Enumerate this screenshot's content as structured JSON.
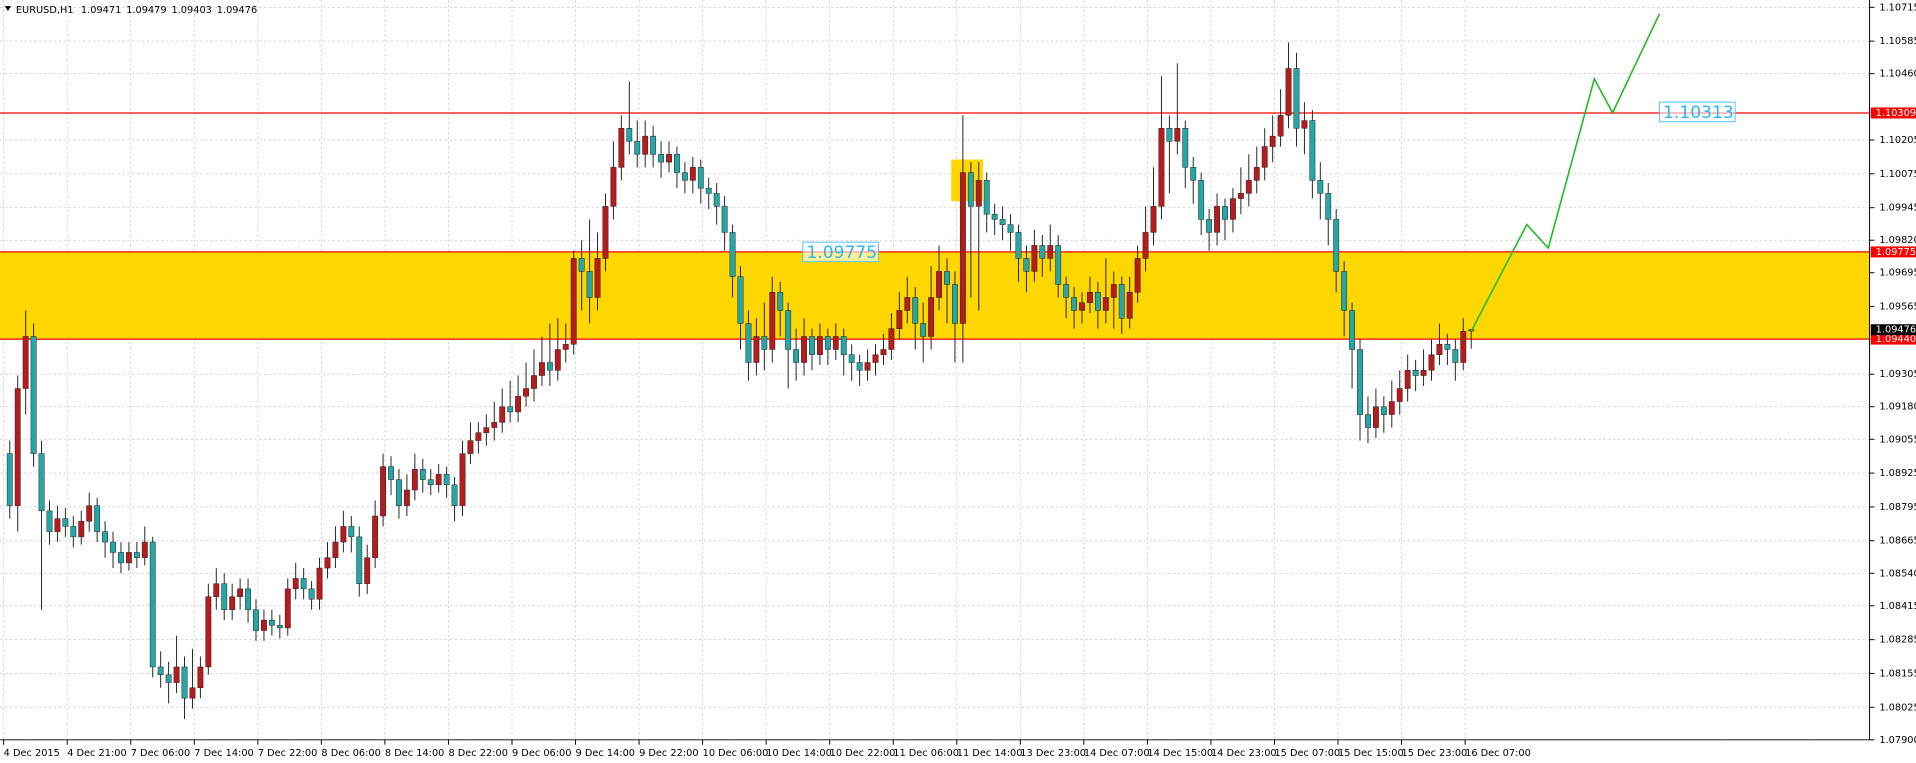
{
  "chart_data": {
    "type": "candlestick",
    "symbol": "EURUSD,H1",
    "up_color": "#b71c1c",
    "down_color": "#26a6a6",
    "grid": true,
    "ylim": [
      1.079,
      1.10715
    ],
    "yticks": [
      1.10715,
      1.10585,
      {
        "value": 1.1046,
        "label": "1.10460"
      },
      1.10205,
      1.10075,
      1.09945,
      {
        "value": 1.0982,
        "label": "1.09820"
      },
      1.09695,
      1.09565,
      1.09305,
      {
        "value": 1.0918,
        "label": "1.09180"
      },
      1.09055,
      1.08925,
      1.08795,
      1.08665,
      {
        "value": 1.0854,
        "label": "1.08540"
      },
      1.08415,
      1.08285,
      1.08155,
      1.08025,
      {
        "value": 1.079,
        "label": "1.07900"
      }
    ],
    "levels": [
      1.10309,
      1.09775,
      {
        "value": 1.0944,
        "label": "1.09440"
      }
    ],
    "level_color": "#ff0000",
    "zone_color": "#ffd700",
    "annotations": [
      1.10313
    ],
    "highlight": {
      "x": [
        119,
        123
      ],
      "y": [
        1.0997,
        1.1013
      ],
      "color": "#ffd700"
    },
    "projection": {
      "x": [
        184,
        191,
        193.7,
        199.5,
        201.8,
        207.7
      ],
      "y": [
        1.0947,
        1.0988,
        1.0979,
        1.1044,
        1.1031,
        1.1069
      ],
      "color": "#22bb22"
    },
    "categories": [
      "4 Dec 2015",
      null,
      null,
      null,
      null,
      null,
      null,
      null,
      "4 Dec 21:00",
      null,
      null,
      null,
      null,
      null,
      null,
      null,
      "7 Dec 06:00",
      null,
      null,
      null,
      null,
      null,
      null,
      null,
      "7 Dec 14:00",
      null,
      null,
      null,
      null,
      null,
      null,
      null,
      "7 Dec 22:00",
      null,
      null,
      null,
      null,
      null,
      null,
      null,
      "8 Dec 06:00",
      null,
      null,
      null,
      null,
      null,
      null,
      null,
      "8 Dec 14:00",
      null,
      null,
      null,
      null,
      null,
      null,
      null,
      "8 Dec 22:00",
      null,
      null,
      null,
      null,
      null,
      null,
      null,
      "9 Dec 06:00",
      null,
      null,
      null,
      null,
      null,
      null,
      null,
      "9 Dec 14:00",
      null,
      null,
      null,
      null,
      null,
      null,
      null,
      "9 Dec 22:00",
      null,
      null,
      null,
      null,
      null,
      null,
      null,
      "10 Dec 06:00",
      null,
      null,
      null,
      null,
      null,
      null,
      null,
      "10 Dec 14:00",
      null,
      null,
      null,
      null,
      null,
      null,
      null,
      "10 Dec 22:00",
      null,
      null,
      null,
      null,
      null,
      null,
      null,
      "11 Dec 06:00",
      null,
      null,
      null,
      null,
      null,
      null,
      null,
      "11 Dec 14:00",
      null,
      null,
      null,
      null,
      null,
      null,
      null,
      "13 Dec 23:00",
      null,
      null,
      null,
      null,
      null,
      null,
      null,
      "14 Dec 07:00",
      null,
      null,
      null,
      null,
      null,
      null,
      null,
      "14 Dec 15:00",
      null,
      null,
      null,
      null,
      null,
      null,
      null,
      "14 Dec 23:00",
      null,
      null,
      null,
      null,
      null,
      null,
      null,
      "15 Dec 07:00",
      null,
      null,
      null,
      null,
      null,
      null,
      null,
      "15 Dec 15:00",
      null,
      null,
      null,
      null,
      null,
      null,
      null,
      "15 Dec 23:00",
      null,
      null,
      null,
      null,
      null,
      null,
      null,
      "16 Dec 07:00"
    ],
    "candles": [
      [
        1.09,
        1.0905,
        1.0875,
        1.088
      ],
      [
        1.088,
        1.093,
        1.087,
        1.0925
      ],
      [
        1.0925,
        1.0955,
        1.0915,
        1.0945
      ],
      [
        1.0945,
        1.095,
        1.0895,
        1.09
      ],
      [
        1.09,
        1.0905,
        1.084,
        1.0878
      ],
      [
        1.0878,
        1.0882,
        1.0865,
        1.087
      ],
      [
        1.087,
        1.088,
        1.0866,
        1.0875
      ],
      [
        1.0875,
        1.0879,
        1.0868,
        1.0872
      ],
      [
        1.0872,
        1.0876,
        1.0864,
        1.0868
      ],
      [
        1.0868,
        1.0878,
        1.0865,
        1.0874
      ],
      [
        1.0874,
        1.0885,
        1.087,
        1.088
      ],
      [
        1.088,
        1.0883,
        1.0866,
        1.087
      ],
      [
        1.087,
        1.0874,
        1.086,
        1.0866
      ],
      [
        1.0866,
        1.087,
        1.0856,
        1.0862
      ],
      [
        1.0862,
        1.0866,
        1.0854,
        1.0858
      ],
      [
        1.0858,
        1.0866,
        1.0855,
        1.0862
      ],
      [
        1.0862,
        1.0866,
        1.0856,
        1.086
      ],
      [
        1.086,
        1.0872,
        1.0857,
        1.0866
      ],
      [
        1.0866,
        1.0868,
        1.0814,
        1.0818
      ],
      [
        1.0818,
        1.0824,
        1.081,
        1.0815
      ],
      [
        1.0815,
        1.082,
        1.0804,
        1.0812
      ],
      [
        1.0812,
        1.083,
        1.0808,
        1.0818
      ],
      [
        1.0818,
        1.0822,
        1.0798,
        1.0806
      ],
      [
        1.0806,
        1.0825,
        1.0802,
        1.081
      ],
      [
        1.081,
        1.0822,
        1.0806,
        1.0818
      ],
      [
        1.0818,
        1.085,
        1.0815,
        1.0845
      ],
      [
        1.0845,
        1.0856,
        1.084,
        1.085
      ],
      [
        1.085,
        1.0854,
        1.0836,
        1.084
      ],
      [
        1.084,
        1.085,
        1.0836,
        1.0845
      ],
      [
        1.0845,
        1.0852,
        1.084,
        1.0848
      ],
      [
        1.0848,
        1.0852,
        1.0835,
        1.084
      ],
      [
        1.084,
        1.0844,
        1.0828,
        1.0832
      ],
      [
        1.0832,
        1.084,
        1.0828,
        1.0836
      ],
      [
        1.0836,
        1.084,
        1.083,
        1.0834
      ],
      [
        1.0834,
        1.0838,
        1.0829,
        1.0833
      ],
      [
        1.0833,
        1.0852,
        1.083,
        1.0848
      ],
      [
        1.0848,
        1.0858,
        1.0844,
        1.0852
      ],
      [
        1.0852,
        1.0856,
        1.0844,
        1.0848
      ],
      [
        1.0848,
        1.0851,
        1.084,
        1.0844
      ],
      [
        1.0844,
        1.086,
        1.084,
        1.0856
      ],
      [
        1.0856,
        1.0866,
        1.0852,
        1.086
      ],
      [
        1.086,
        1.0872,
        1.0856,
        1.0866
      ],
      [
        1.0866,
        1.0878,
        1.0862,
        1.0872
      ],
      [
        1.0872,
        1.0876,
        1.0862,
        1.0868
      ],
      [
        1.0868,
        1.0872,
        1.0845,
        1.085
      ],
      [
        1.085,
        1.0865,
        1.0846,
        1.086
      ],
      [
        1.086,
        1.0882,
        1.0856,
        1.0876
      ],
      [
        1.0876,
        1.09,
        1.0872,
        1.0895
      ],
      [
        1.0895,
        1.0899,
        1.0884,
        1.089
      ],
      [
        1.089,
        1.0894,
        1.0875,
        1.088
      ],
      [
        1.088,
        1.0892,
        1.0876,
        1.0886
      ],
      [
        1.0886,
        1.09,
        1.0882,
        1.0894
      ],
      [
        1.0894,
        1.0898,
        1.0885,
        1.089
      ],
      [
        1.089,
        1.0894,
        1.0884,
        1.0888
      ],
      [
        1.0888,
        1.0896,
        1.0885,
        1.0892
      ],
      [
        1.0892,
        1.0895,
        1.0883,
        1.0888
      ],
      [
        1.0888,
        1.0891,
        1.0874,
        1.088
      ],
      [
        1.088,
        1.0905,
        1.0876,
        1.09
      ],
      [
        1.09,
        1.0912,
        1.0896,
        1.0905
      ],
      [
        1.0905,
        1.0912,
        1.09,
        1.0908
      ],
      [
        1.0908,
        1.0915,
        1.0903,
        1.091
      ],
      [
        1.091,
        1.092,
        1.0905,
        1.0912
      ],
      [
        1.0912,
        1.0925,
        1.0908,
        1.0918
      ],
      [
        1.0918,
        1.0928,
        1.0912,
        1.0916
      ],
      [
        1.0916,
        1.093,
        1.0912,
        1.0922
      ],
      [
        1.0922,
        1.0935,
        1.0918,
        1.0925
      ],
      [
        1.0925,
        1.094,
        1.092,
        1.093
      ],
      [
        1.093,
        1.0945,
        1.0926,
        1.0935
      ],
      [
        1.0935,
        1.095,
        1.0926,
        1.0932
      ],
      [
        1.0932,
        1.0952,
        1.0928,
        1.094
      ],
      [
        1.094,
        1.095,
        1.0935,
        1.0942
      ],
      [
        1.0942,
        1.0978,
        1.0938,
        1.0975
      ],
      [
        1.0975,
        1.0982,
        1.0955,
        1.097
      ],
      [
        1.097,
        1.099,
        1.095,
        1.096
      ],
      [
        1.096,
        1.0985,
        1.0955,
        1.0975
      ],
      [
        1.0975,
        1.1,
        1.097,
        1.0995
      ],
      [
        1.0995,
        1.102,
        1.099,
        1.101
      ],
      [
        1.101,
        1.103,
        1.1005,
        1.1025
      ],
      [
        1.1025,
        1.1043,
        1.1015,
        1.102
      ],
      [
        1.102,
        1.1028,
        1.101,
        1.1015
      ],
      [
        1.1015,
        1.1028,
        1.101,
        1.1022
      ],
      [
        1.1022,
        1.1026,
        1.101,
        1.1015
      ],
      [
        1.1015,
        1.102,
        1.1006,
        1.1012
      ],
      [
        1.1012,
        1.102,
        1.1008,
        1.1015
      ],
      [
        1.1015,
        1.1018,
        1.1002,
        1.1008
      ],
      [
        1.1008,
        1.1012,
        1.1,
        1.1005
      ],
      [
        1.1005,
        1.1014,
        1.1,
        1.101
      ],
      [
        1.101,
        1.1013,
        1.0996,
        1.1002
      ],
      [
        1.1002,
        1.1006,
        1.0994,
        1.1
      ],
      [
        1.1,
        1.1004,
        1.0988,
        1.0995
      ],
      [
        1.0995,
        1.0999,
        1.0978,
        1.0985
      ],
      [
        1.0985,
        1.0988,
        1.096,
        1.0968
      ],
      [
        1.0968,
        1.0972,
        1.094,
        1.095
      ],
      [
        1.095,
        1.0955,
        1.0928,
        1.0935
      ],
      [
        1.0935,
        1.0952,
        1.093,
        1.0945
      ],
      [
        1.0945,
        1.0958,
        1.0932,
        1.094
      ],
      [
        1.094,
        1.0968,
        1.0935,
        1.0962
      ],
      [
        1.0962,
        1.0966,
        1.0945,
        1.0955
      ],
      [
        1.0955,
        1.0958,
        1.0925,
        1.094
      ],
      [
        1.094,
        1.0948,
        1.0928,
        1.0935
      ],
      [
        1.0935,
        1.0952,
        1.093,
        1.0945
      ],
      [
        1.0945,
        1.0948,
        1.0932,
        1.0938
      ],
      [
        1.0938,
        1.095,
        1.0934,
        1.0945
      ],
      [
        1.0945,
        1.0948,
        1.0934,
        1.094
      ],
      [
        1.094,
        1.095,
        1.0936,
        1.0945
      ],
      [
        1.0945,
        1.0948,
        1.093,
        1.0938
      ],
      [
        1.0938,
        1.0942,
        1.0928,
        1.0935
      ],
      [
        1.0935,
        1.0938,
        1.0926,
        1.0932
      ],
      [
        1.0932,
        1.094,
        1.0928,
        1.0935
      ],
      [
        1.0935,
        1.0942,
        1.093,
        1.0938
      ],
      [
        1.0938,
        1.0946,
        1.0934,
        1.094
      ],
      [
        1.094,
        1.0954,
        1.0936,
        1.0948
      ],
      [
        1.0948,
        1.0962,
        1.0944,
        1.0955
      ],
      [
        1.0955,
        1.0968,
        1.095,
        1.096
      ],
      [
        1.096,
        1.0964,
        1.094,
        1.095
      ],
      [
        1.095,
        1.0958,
        1.0935,
        1.0945
      ],
      [
        1.0945,
        1.0972,
        1.094,
        1.096
      ],
      [
        1.096,
        1.098,
        1.0955,
        1.097
      ],
      [
        1.097,
        1.0975,
        1.095,
        1.0965
      ],
      [
        1.0965,
        1.097,
        1.0935,
        1.095
      ],
      [
        1.095,
        1.103,
        1.0935,
        1.1008
      ],
      [
        1.1008,
        1.1012,
        1.096,
        1.0995
      ],
      [
        1.0995,
        1.1012,
        1.0955,
        1.1005
      ],
      [
        1.1005,
        1.1008,
        1.0985,
        1.0992
      ],
      [
        1.0992,
        1.0996,
        1.0984,
        1.099
      ],
      [
        1.099,
        1.0995,
        1.0982,
        1.0988
      ],
      [
        1.0988,
        1.0992,
        1.0978,
        1.0985
      ],
      [
        1.0985,
        1.0988,
        1.0966,
        1.0975
      ],
      [
        1.0975,
        1.098,
        1.0962,
        1.097
      ],
      [
        1.097,
        1.0986,
        1.0966,
        1.098
      ],
      [
        1.098,
        1.0984,
        1.0968,
        1.0975
      ],
      [
        1.0975,
        1.0988,
        1.097,
        1.098
      ],
      [
        1.098,
        1.0984,
        1.096,
        1.0965
      ],
      [
        1.0965,
        1.0968,
        1.0952,
        1.096
      ],
      [
        1.096,
        1.0964,
        1.0948,
        1.0955
      ],
      [
        1.0955,
        1.0962,
        1.095,
        1.0958
      ],
      [
        1.0958,
        1.0968,
        1.0954,
        1.0962
      ],
      [
        1.0962,
        1.0966,
        1.0948,
        1.0955
      ],
      [
        1.0955,
        1.0975,
        1.095,
        1.096
      ],
      [
        1.096,
        1.097,
        1.0948,
        1.0965
      ],
      [
        1.0965,
        1.0968,
        1.0946,
        1.0952
      ],
      [
        1.0952,
        1.0968,
        1.0948,
        1.0962
      ],
      [
        1.0962,
        1.098,
        1.0958,
        1.0975
      ],
      [
        1.0975,
        1.0995,
        1.097,
        1.0985
      ],
      [
        1.0985,
        1.101,
        1.098,
        1.0995
      ],
      [
        1.0995,
        1.1045,
        1.099,
        1.1025
      ],
      [
        1.1025,
        1.103,
        1.1,
        1.102
      ],
      [
        1.102,
        1.105,
        1.1015,
        1.1025
      ],
      [
        1.1025,
        1.1028,
        1.1002,
        1.101
      ],
      [
        1.101,
        1.1014,
        1.0996,
        1.1005
      ],
      [
        1.1005,
        1.1008,
        1.0984,
        1.099
      ],
      [
        1.099,
        1.0994,
        1.0978,
        1.0985
      ],
      [
        1.0985,
        1.1,
        1.098,
        1.0995
      ],
      [
        1.0995,
        1.0998,
        1.0982,
        1.099
      ],
      [
        1.099,
        1.1002,
        1.0985,
        1.0998
      ],
      [
        1.0998,
        1.101,
        1.0992,
        1.1
      ],
      [
        1.1,
        1.1015,
        1.0995,
        1.1005
      ],
      [
        1.1005,
        1.1018,
        1.1,
        1.101
      ],
      [
        1.101,
        1.1025,
        1.1005,
        1.1018
      ],
      [
        1.1018,
        1.103,
        1.1012,
        1.1022
      ],
      [
        1.1022,
        1.104,
        1.1018,
        1.103
      ],
      [
        1.103,
        1.1058,
        1.1025,
        1.1048
      ],
      [
        1.1048,
        1.1054,
        1.1018,
        1.1025
      ],
      [
        1.1025,
        1.1035,
        1.1015,
        1.1028
      ],
      [
        1.1028,
        1.1032,
        1.0998,
        1.1005
      ],
      [
        1.1005,
        1.1012,
        1.099,
        1.1
      ],
      [
        1.1,
        1.1004,
        1.098,
        1.099
      ],
      [
        1.099,
        1.0994,
        1.0962,
        1.097
      ],
      [
        1.097,
        1.0974,
        1.0945,
        1.0955
      ],
      [
        1.0955,
        1.0958,
        1.0925,
        1.094
      ],
      [
        1.094,
        1.0944,
        1.0905,
        1.0915
      ],
      [
        1.0915,
        1.0922,
        1.0904,
        1.091
      ],
      [
        1.091,
        1.0925,
        1.0906,
        1.0918
      ],
      [
        1.0918,
        1.0922,
        1.0908,
        1.0915
      ],
      [
        1.0915,
        1.0928,
        1.091,
        1.092
      ],
      [
        1.092,
        1.0932,
        1.0915,
        1.0925
      ],
      [
        1.0925,
        1.0938,
        1.092,
        1.0932
      ],
      [
        1.0932,
        1.0936,
        1.0924,
        1.093
      ],
      [
        1.093,
        1.094,
        1.0926,
        1.0932
      ],
      [
        1.0932,
        1.0944,
        1.0928,
        1.0938
      ],
      [
        1.0938,
        1.095,
        1.0934,
        1.0942
      ],
      [
        1.0942,
        1.0946,
        1.0934,
        1.094
      ],
      [
        1.094,
        1.0944,
        1.0928,
        1.0935
      ],
      [
        1.0935,
        1.0952,
        1.0932,
        1.0947
      ],
      [
        1.09471,
        1.09479,
        1.09403,
        1.09476
      ]
    ]
  }
}
